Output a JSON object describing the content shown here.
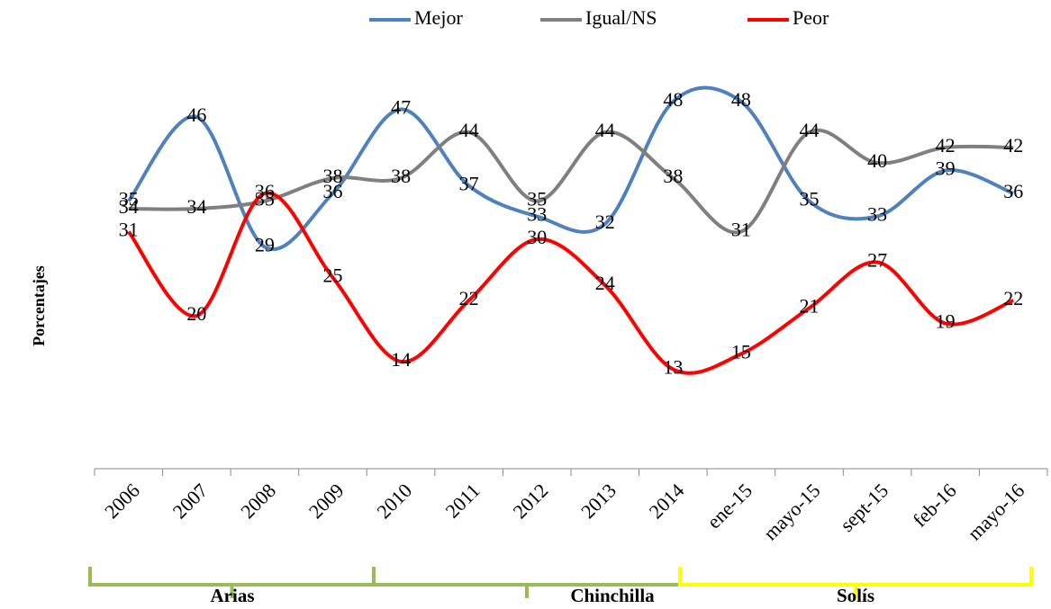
{
  "chart_data": {
    "type": "line",
    "y_label": "Porcentajes",
    "categories": [
      "2006",
      "2007",
      "2008",
      "2009",
      "2010",
      "2011",
      "2012",
      "2013",
      "2014",
      "ene-15",
      "mayo-15",
      "sept-15",
      "feb-16",
      "mayo-16"
    ],
    "series": [
      {
        "name": "Mejor",
        "color": "#4f81bd",
        "values": [
          35,
          46,
          29,
          36,
          47,
          37,
          33,
          32,
          48,
          48,
          35,
          33,
          39,
          36
        ]
      },
      {
        "name": "Igual/NS",
        "color": "#7f7f7f",
        "values": [
          34,
          34,
          35,
          38,
          38,
          44,
          35,
          44,
          38,
          31,
          44,
          40,
          42,
          42
        ]
      },
      {
        "name": "Peor",
        "color": "#ff0000",
        "values": [
          31,
          20,
          36,
          25,
          14,
          22,
          30,
          24,
          13,
          15,
          21,
          27,
          19,
          22
        ]
      }
    ],
    "ylim": [
      0,
      60
    ],
    "periods": [
      "Arias",
      "Chinchilla",
      "Solís"
    ]
  }
}
